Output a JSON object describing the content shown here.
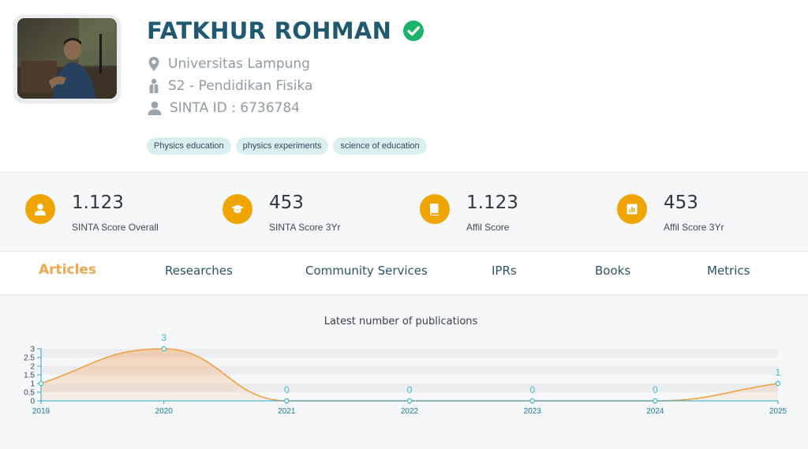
{
  "profile": {
    "name": "FATKHUR ROHMAN",
    "affiliation": "Universitas Lampung",
    "program": "S2 - Pendidikan Fisika",
    "sinta_id": "SINTA ID : 6736784",
    "tags": [
      "Physics education",
      "physics experiments",
      "science of education"
    ]
  },
  "scores": [
    {
      "value": "1.123",
      "label": "SINTA Score Overall",
      "icon": "user-icon"
    },
    {
      "value": "453",
      "label": "SINTA Score 3Yr",
      "icon": "graduation-cap-icon"
    },
    {
      "value": "1.123",
      "label": "Affil Score",
      "icon": "book-icon"
    },
    {
      "value": "453",
      "label": "Affil Score 3Yr",
      "icon": "bar-chart-icon"
    }
  ],
  "tabs": [
    {
      "label": "Articles",
      "active": true
    },
    {
      "label": "Researches",
      "active": false
    },
    {
      "label": "Community Services",
      "active": false
    },
    {
      "label": "IPRs",
      "active": false
    },
    {
      "label": "Books",
      "active": false
    },
    {
      "label": "Metrics",
      "active": false
    }
  ],
  "colors": {
    "accent": "#f0a500",
    "name": "#1f5a70",
    "verified": "#1cb36b",
    "tab_active": "#f0a84a",
    "series_line": "#f39c3c",
    "data_label": "#3cbcc8"
  },
  "chart_data": {
    "type": "area",
    "title": "Latest number of publications",
    "x": [
      "2019",
      "2020",
      "2021",
      "2022",
      "2023",
      "2024",
      "2025"
    ],
    "y": [
      1,
      3,
      0,
      0,
      0,
      0,
      1
    ],
    "y_ticks": [
      "0",
      "0.5",
      "1",
      "1.5",
      "2",
      "2.5",
      "3"
    ],
    "ylim": [
      0,
      3
    ],
    "data_labels": [
      "",
      "3",
      "0",
      "0",
      "0",
      "0",
      "1"
    ],
    "xlabel": "",
    "ylabel": "",
    "legend": "none",
    "grid": true
  }
}
